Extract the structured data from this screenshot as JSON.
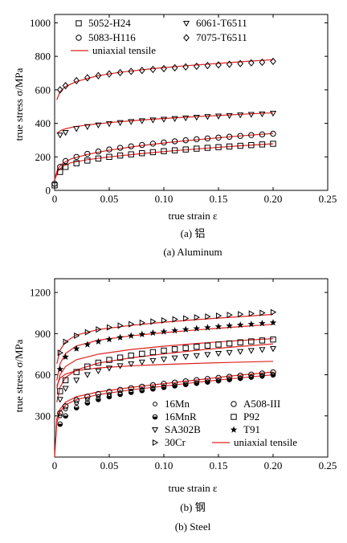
{
  "chart_data": [
    {
      "type": "scatter",
      "xlabel": "true strain ε",
      "ylabel": "true stress σ/MPa",
      "xlim": [
        0,
        0.25
      ],
      "ylim": [
        0,
        1050
      ],
      "xticks": [
        "0",
        "0.05",
        "0.10",
        "0.15",
        "0.20",
        "0.25"
      ],
      "yticks": [
        "0",
        "200",
        "400",
        "600",
        "800",
        "1000"
      ],
      "xtick_values": [
        0,
        0.05,
        0.1,
        0.15,
        0.2,
        0.25
      ],
      "ytick_values": [
        0,
        200,
        400,
        600,
        800,
        1000
      ],
      "caption_cn": "(a) 铝",
      "caption_en": "(a) Aluminum",
      "legend_position": "top",
      "series": [
        {
          "name": "5052-H24",
          "marker": "square",
          "x": [
            0,
            0.005,
            0.01,
            0.02,
            0.03,
            0.04,
            0.05,
            0.06,
            0.07,
            0.08,
            0.09,
            0.1,
            0.11,
            0.12,
            0.13,
            0.14,
            0.15,
            0.16,
            0.17,
            0.18,
            0.19,
            0.2
          ],
          "y": [
            30,
            110,
            140,
            162,
            178,
            190,
            200,
            208,
            215,
            222,
            228,
            234,
            239,
            244,
            249,
            254,
            258,
            262,
            266,
            270,
            274,
            278
          ]
        },
        {
          "name": "5083-H116",
          "marker": "circle",
          "x": [
            0,
            0.005,
            0.01,
            0.02,
            0.03,
            0.04,
            0.05,
            0.06,
            0.07,
            0.08,
            0.09,
            0.1,
            0.11,
            0.12,
            0.13,
            0.14,
            0.15,
            0.16,
            0.17,
            0.18,
            0.19,
            0.2
          ],
          "y": [
            40,
            140,
            175,
            200,
            218,
            232,
            244,
            254,
            263,
            271,
            279,
            286,
            293,
            299,
            305,
            310,
            315,
            320,
            325,
            330,
            334,
            338
          ]
        },
        {
          "name": "6061-T6511",
          "marker": "triangle-down",
          "x": [
            0.005,
            0.01,
            0.02,
            0.03,
            0.04,
            0.05,
            0.06,
            0.07,
            0.08,
            0.09,
            0.1,
            0.11,
            0.12,
            0.13,
            0.14,
            0.15,
            0.16,
            0.17,
            0.18,
            0.19,
            0.2
          ],
          "y": [
            330,
            345,
            368,
            380,
            390,
            398,
            404,
            410,
            415,
            420,
            424,
            428,
            432,
            436,
            440,
            443,
            446,
            450,
            453,
            456,
            460
          ]
        },
        {
          "name": "7075-T6511",
          "marker": "diamond",
          "x": [
            0.005,
            0.01,
            0.02,
            0.03,
            0.04,
            0.05,
            0.06,
            0.07,
            0.08,
            0.09,
            0.1,
            0.11,
            0.12,
            0.13,
            0.14,
            0.15,
            0.16,
            0.17,
            0.18,
            0.19,
            0.2
          ],
          "y": [
            600,
            625,
            655,
            672,
            685,
            695,
            703,
            710,
            716,
            722,
            727,
            732,
            737,
            741,
            745,
            749,
            753,
            757,
            761,
            765,
            770
          ]
        }
      ],
      "fit_series": [
        {
          "name": "uniaxial tensile",
          "x": [
            0,
            0.003,
            0.007,
            0.015,
            0.03,
            0.05,
            0.08,
            0.11,
            0.14,
            0.17,
            0.2
          ],
          "y": [
            60,
            115,
            142,
            165,
            183,
            200,
            220,
            237,
            252,
            266,
            278
          ]
        },
        {
          "x": [
            0,
            0.003,
            0.007,
            0.015,
            0.03,
            0.05,
            0.08,
            0.11,
            0.14,
            0.17,
            0.2
          ],
          "y": [
            70,
            130,
            160,
            188,
            215,
            240,
            268,
            290,
            308,
            325,
            340
          ]
        },
        {
          "x": [
            0.002,
            0.005,
            0.01,
            0.02,
            0.04,
            0.06,
            0.09,
            0.12,
            0.15,
            0.18,
            0.2
          ],
          "y": [
            340,
            355,
            368,
            382,
            398,
            410,
            425,
            437,
            447,
            457,
            463
          ]
        },
        {
          "x": [
            0.002,
            0.005,
            0.01,
            0.02,
            0.04,
            0.06,
            0.09,
            0.12,
            0.15,
            0.18,
            0.2
          ],
          "y": [
            540,
            590,
            620,
            650,
            685,
            705,
            727,
            744,
            758,
            772,
            780
          ]
        }
      ]
    },
    {
      "type": "scatter",
      "xlabel": "true strain ε",
      "ylabel": "true stress σ/MPa",
      "xlim": [
        0,
        0.25
      ],
      "ylim": [
        0,
        1300
      ],
      "xticks": [
        "0",
        "0.05",
        "0.10",
        "0.15",
        "0.20",
        "0.25"
      ],
      "yticks": [
        "300",
        "600",
        "900",
        "1200"
      ],
      "xtick_values": [
        0,
        0.05,
        0.1,
        0.15,
        0.2,
        0.25
      ],
      "ytick_values": [
        300,
        600,
        900,
        1200
      ],
      "caption_cn": "(b) 钢",
      "caption_en": "(b) Steel",
      "legend_position": "bottom-right",
      "series": [
        {
          "name": "16Mn",
          "marker": "circle-small",
          "x": [
            0.005,
            0.01,
            0.02,
            0.03,
            0.04,
            0.05,
            0.06,
            0.07,
            0.08,
            0.09,
            0.1,
            0.11,
            0.12,
            0.13,
            0.14,
            0.15,
            0.16,
            0.17,
            0.18,
            0.19,
            0.2
          ],
          "y": [
            300,
            350,
            395,
            420,
            440,
            456,
            470,
            482,
            493,
            503,
            513,
            522,
            531,
            540,
            548,
            556,
            564,
            572,
            580,
            588,
            596
          ]
        },
        {
          "name": "A508-III",
          "marker": "circle",
          "x": [
            0.005,
            0.01,
            0.02,
            0.03,
            0.04,
            0.05,
            0.06,
            0.07,
            0.08,
            0.09,
            0.1,
            0.11,
            0.12,
            0.13,
            0.14,
            0.15,
            0.16,
            0.17,
            0.18,
            0.19,
            0.2
          ],
          "y": [
            320,
            370,
            415,
            440,
            460,
            476,
            490,
            502,
            513,
            524,
            534,
            543,
            552,
            561,
            569,
            577,
            585,
            593,
            601,
            609,
            617
          ]
        },
        {
          "name": "16MnR",
          "marker": "circle-half",
          "x": [
            0.005,
            0.01,
            0.02,
            0.03,
            0.04,
            0.05,
            0.06,
            0.07,
            0.08,
            0.09,
            0.1,
            0.11,
            0.12,
            0.13,
            0.14,
            0.15,
            0.16,
            0.17,
            0.18,
            0.19,
            0.2
          ],
          "y": [
            240,
            300,
            360,
            395,
            420,
            440,
            457,
            472,
            485,
            497,
            508,
            519,
            529,
            538,
            547,
            556,
            565,
            574,
            583,
            592,
            600
          ]
        },
        {
          "name": "P92",
          "marker": "square",
          "x": [
            0.005,
            0.01,
            0.02,
            0.03,
            0.04,
            0.05,
            0.06,
            0.07,
            0.08,
            0.09,
            0.1,
            0.11,
            0.12,
            0.13,
            0.14,
            0.15,
            0.16,
            0.17,
            0.18,
            0.19,
            0.2
          ],
          "y": [
            480,
            560,
            620,
            660,
            688,
            708,
            725,
            740,
            753,
            765,
            776,
            786,
            795,
            804,
            812,
            820,
            828,
            836,
            843,
            850,
            857
          ]
        },
        {
          "name": "SA302B",
          "marker": "triangle-down",
          "x": [
            0.005,
            0.01,
            0.02,
            0.03,
            0.04,
            0.05,
            0.06,
            0.07,
            0.08,
            0.09,
            0.1,
            0.11,
            0.12,
            0.13,
            0.14,
            0.15,
            0.16,
            0.17,
            0.18,
            0.19,
            0.2
          ],
          "y": [
            420,
            500,
            560,
            600,
            628,
            648,
            665,
            680,
            692,
            703,
            713,
            722,
            731,
            739,
            747,
            755,
            762,
            769,
            776,
            783,
            790
          ]
        },
        {
          "name": "T91",
          "marker": "star",
          "x": [
            0.005,
            0.01,
            0.02,
            0.03,
            0.04,
            0.05,
            0.06,
            0.07,
            0.08,
            0.09,
            0.1,
            0.11,
            0.12,
            0.13,
            0.14,
            0.15,
            0.16,
            0.17,
            0.18,
            0.19,
            0.2
          ],
          "y": [
            640,
            730,
            790,
            820,
            842,
            858,
            872,
            884,
            895,
            905,
            914,
            922,
            930,
            937,
            944,
            951,
            957,
            963,
            969,
            975,
            980
          ]
        },
        {
          "name": "30Cr",
          "marker": "triangle-right",
          "x": [
            0.005,
            0.01,
            0.02,
            0.03,
            0.04,
            0.05,
            0.06,
            0.07,
            0.08,
            0.09,
            0.1,
            0.11,
            0.12,
            0.13,
            0.14,
            0.15,
            0.16,
            0.17,
            0.18,
            0.19,
            0.2
          ],
          "y": [
            760,
            840,
            885,
            910,
            930,
            945,
            958,
            969,
            979,
            988,
            996,
            1004,
            1011,
            1018,
            1024,
            1030,
            1036,
            1041,
            1046,
            1051,
            1056
          ]
        }
      ],
      "fit_series": [
        {
          "name": "uniaxial tensile",
          "x": [
            0,
            0.002,
            0.005,
            0.01,
            0.02,
            0.04,
            0.07,
            0.1,
            0.13,
            0.16,
            0.2
          ],
          "y": [
            0,
            250,
            330,
            380,
            420,
            455,
            490,
            517,
            545,
            570,
            600
          ]
        },
        {
          "x": [
            0,
            0.002,
            0.005,
            0.01,
            0.02,
            0.04,
            0.07,
            0.1,
            0.13,
            0.16,
            0.2
          ],
          "y": [
            0,
            280,
            350,
            400,
            440,
            475,
            508,
            535,
            562,
            590,
            620
          ]
        },
        {
          "x": [
            0.002,
            0.005,
            0.01,
            0.02,
            0.04,
            0.07,
            0.1,
            0.13,
            0.16,
            0.2
          ],
          "y": [
            520,
            575,
            605,
            630,
            650,
            665,
            675,
            683,
            690,
            698
          ]
        },
        {
          "x": [
            0.002,
            0.005,
            0.01,
            0.02,
            0.04,
            0.07,
            0.1,
            0.13,
            0.16,
            0.2
          ],
          "y": [
            400,
            510,
            580,
            635,
            685,
            723,
            752,
            778,
            800,
            825
          ]
        },
        {
          "x": [
            0.002,
            0.005,
            0.01,
            0.02,
            0.04,
            0.07,
            0.1,
            0.13,
            0.16,
            0.2
          ],
          "y": [
            500,
            600,
            660,
            710,
            750,
            784,
            808,
            828,
            845,
            863
          ]
        },
        {
          "x": [
            0.002,
            0.005,
            0.01,
            0.02,
            0.04,
            0.07,
            0.1,
            0.13,
            0.16,
            0.2
          ],
          "y": [
            560,
            680,
            755,
            810,
            852,
            884,
            907,
            927,
            945,
            968
          ]
        },
        {
          "x": [
            0.002,
            0.005,
            0.01,
            0.02,
            0.04,
            0.07,
            0.1,
            0.13,
            0.16,
            0.2
          ],
          "y": [
            680,
            780,
            840,
            890,
            930,
            960,
            983,
            1002,
            1018,
            1040
          ]
        }
      ]
    }
  ]
}
